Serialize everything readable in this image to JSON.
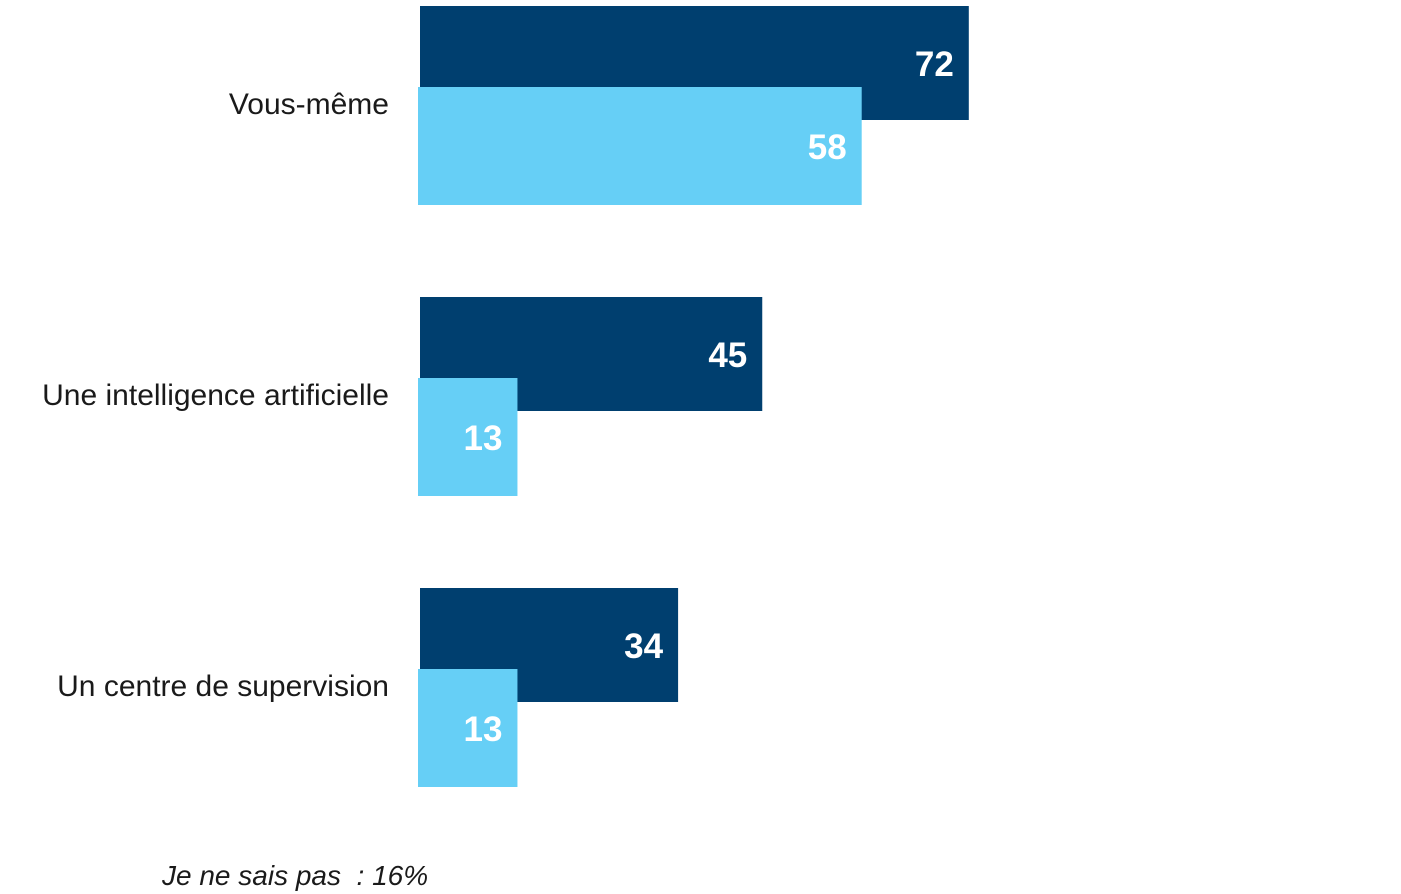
{
  "chart_data": {
    "type": "bar",
    "orientation": "horizontal",
    "categories": [
      "Vous-même",
      "Une intelligence artificielle",
      "Un centre de supervision"
    ],
    "series": [
      {
        "values": [
          72,
          45,
          34
        ],
        "color": "#003F6F"
      },
      {
        "values": [
          58,
          13,
          13
        ],
        "color": "#66CFF6"
      }
    ],
    "title": "",
    "xlabel": "",
    "ylabel": "",
    "xlim": [
      0,
      100
    ],
    "grid": false,
    "legend": "none"
  },
  "footnote": "Je ne sais pas  : 16%"
}
